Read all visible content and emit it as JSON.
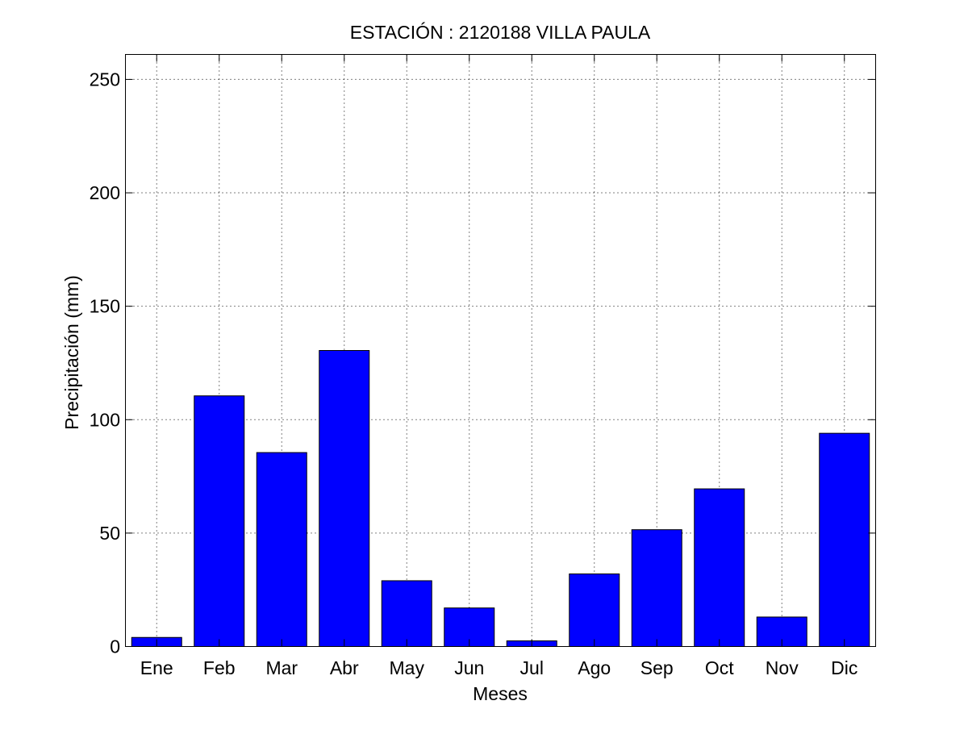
{
  "chart_data": {
    "type": "bar",
    "title": "ESTACIÓN :  2120188  VILLA PAULA",
    "xlabel": "Meses",
    "ylabel": "Precipitación (mm)",
    "categories": [
      "Ene",
      "Feb",
      "Mar",
      "Abr",
      "May",
      "Jun",
      "Jul",
      "Ago",
      "Sep",
      "Oct",
      "Nov",
      "Dic"
    ],
    "values": [
      4,
      110.5,
      85.5,
      130.5,
      29,
      17,
      2.5,
      32,
      51.5,
      69.5,
      13,
      94
    ],
    "ylim": [
      0,
      261
    ],
    "yticks": [
      0,
      50,
      100,
      150,
      200,
      250
    ],
    "grid": true,
    "colors": {
      "bar": "#0000ff",
      "edge": "#000000",
      "grid": "#000000"
    }
  }
}
